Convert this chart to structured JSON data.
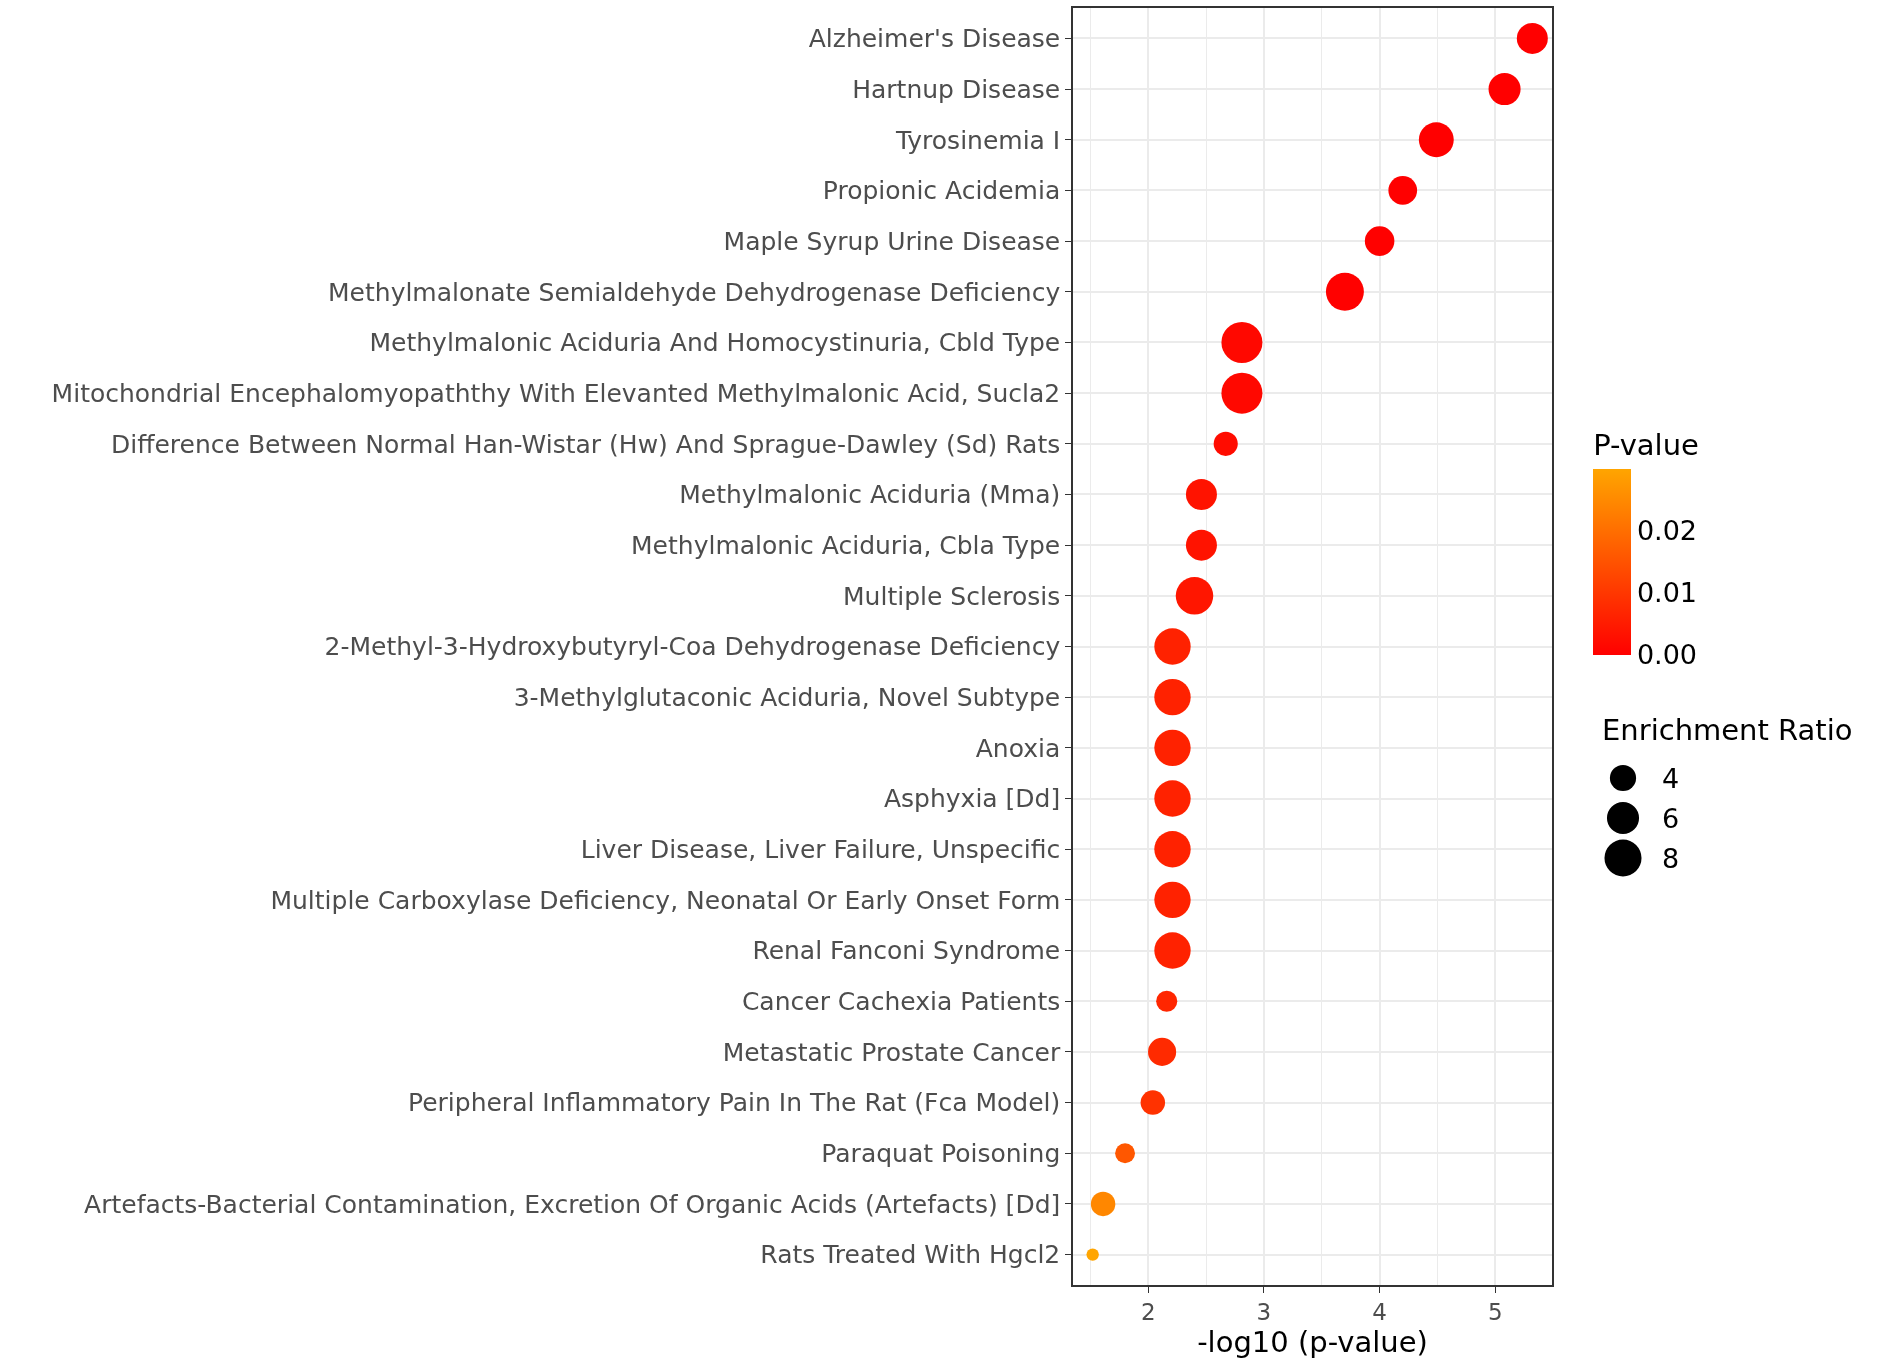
{
  "chart_data": {
    "type": "bubble",
    "orientation": "horizontal",
    "xlabel": "-log10 (p-value)",
    "clabel": "P-value",
    "legend_title": "Enrichment Ratio",
    "categories": [
      "Alzheimer's Disease",
      "Hartnup Disease",
      "Tyrosinemia I",
      "Propionic Acidemia",
      "Maple Syrup Urine Disease",
      "Methylmalonate Semialdehyde Dehydrogenase Deficiency",
      "Methylmalonic Aciduria And Homocystinuria, Cbld Type",
      "Mitochondrial Encephalomyopaththy With Elevanted Methylmalonic Acid, Sucla2",
      "Difference Between Normal Han-Wistar (Hw) And Sprague-Dawley (Sd) Rats",
      "Methylmalonic Aciduria (Mma)",
      "Methylmalonic Aciduria, Cbla Type",
      "Multiple Sclerosis",
      "2-Methyl-3-Hydroxybutyryl-Coa Dehydrogenase Deficiency",
      "3-Methylglutaconic Aciduria, Novel Subtype",
      "Anoxia",
      "Asphyxia [Dd]",
      "Liver Disease, Liver Failure, Unspecific",
      "Multiple Carboxylase Deficiency, Neonatal Or Early Onset Form",
      "Renal Fanconi Syndrome",
      "Cancer Cachexia Patients",
      "Metastatic Prostate Cancer",
      "Peripheral Inflammatory Pain In The Rat (Fca Model)",
      "Paraquat Poisoning",
      "Artefacts-Bacterial Contamination, Excretion Of Organic Acids (Artefacts) [Dd]",
      "Rats Treated With Hgcl2"
    ],
    "values": [
      5.32,
      5.08,
      4.49,
      4.2,
      4.0,
      3.7,
      2.81,
      2.81,
      2.67,
      2.46,
      2.46,
      2.4,
      2.21,
      2.21,
      2.21,
      2.21,
      2.21,
      2.21,
      2.21,
      2.16,
      2.12,
      2.04,
      1.8,
      1.61,
      1.52
    ],
    "sizes": [
      5.6,
      6.0,
      7.1,
      4.8,
      5.1,
      8.4,
      9.8,
      9.8,
      3.4,
      5.6,
      5.6,
      8.2,
      7.7,
      7.7,
      7.7,
      7.7,
      7.7,
      7.7,
      7.7,
      2.6,
      4.6,
      3.5,
      2.3,
      3.5,
      0.9
    ],
    "cvalues": [
      5e-06,
      8e-06,
      3e-05,
      6e-05,
      0.0001,
      0.0002,
      0.0015,
      0.0015,
      0.0021,
      0.0035,
      0.0035,
      0.004,
      0.0062,
      0.0062,
      0.0062,
      0.0062,
      0.0062,
      0.0062,
      0.0062,
      0.0069,
      0.0076,
      0.0091,
      0.0158,
      0.0245,
      0.03
    ],
    "size_legend": [
      4,
      6,
      8
    ],
    "clim": [
      0,
      0.03
    ],
    "cticks": [
      {
        "value": 0,
        "label": "0.00"
      },
      {
        "value": 0.01,
        "label": "0.01"
      },
      {
        "value": 0.02,
        "label": "0.02"
      }
    ],
    "xlim": [
      1.35,
      5.49
    ],
    "xticks": [
      {
        "value": 1.5,
        "label": null
      },
      2,
      {
        "value": 2.5,
        "label": null
      },
      3,
      {
        "value": 3.5,
        "label": null
      },
      4,
      {
        "value": 4.5,
        "label": null
      },
      5
    ],
    "grid": true
  }
}
